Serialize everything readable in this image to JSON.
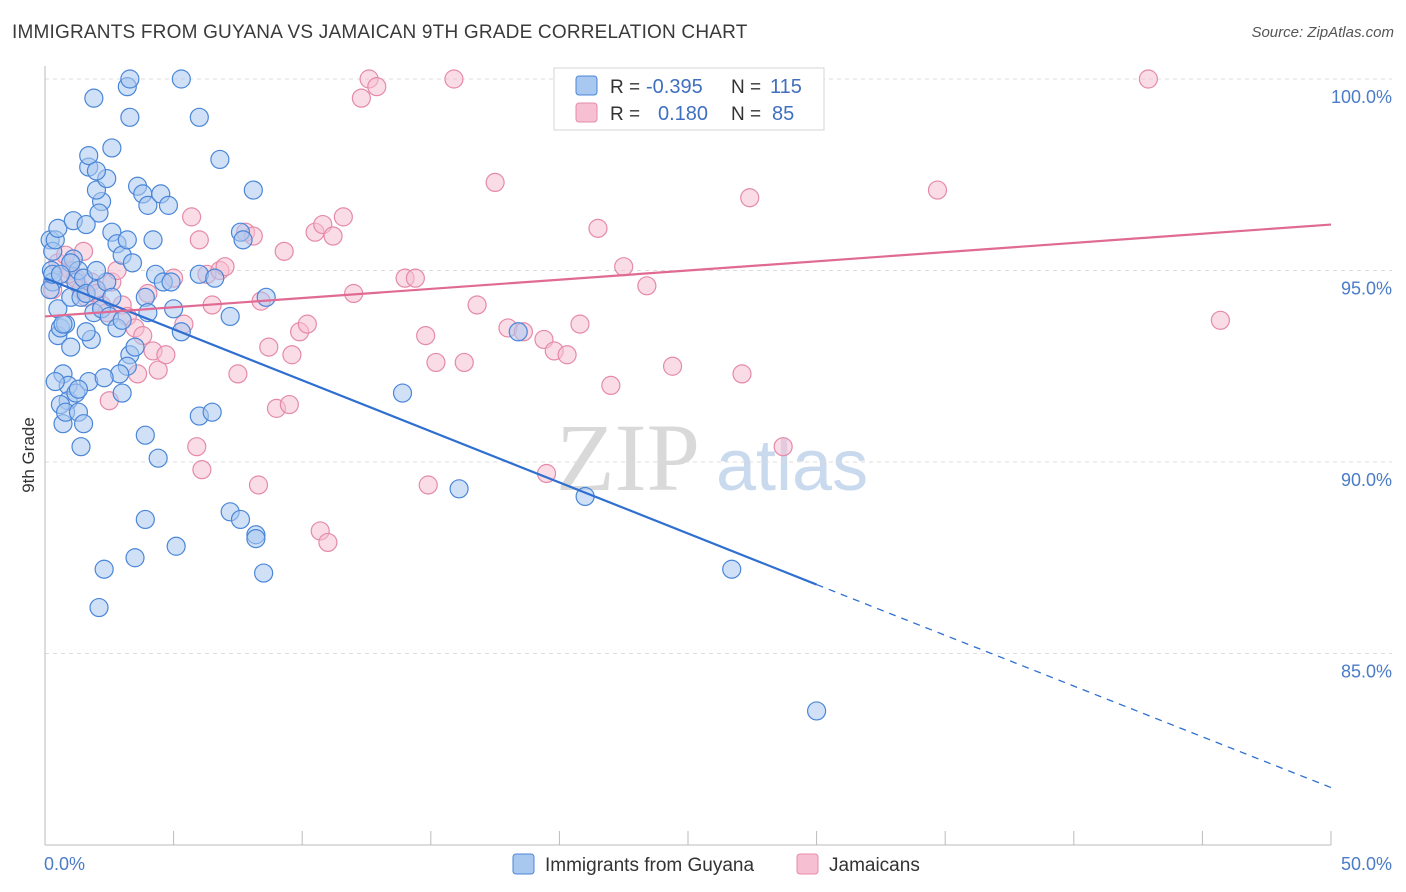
{
  "title": "IMMIGRANTS FROM GUYANA VS JAMAICAN 9TH GRADE CORRELATION CHART",
  "source": "Source: ZipAtlas.com",
  "watermark": {
    "zip": "ZIP",
    "atlas": "atlas"
  },
  "colors": {
    "blue_fill": "#a9c8f0",
    "blue_stroke": "#4a86d8",
    "blue_line": "#2f6fd0",
    "pink_fill": "#f6c0d2",
    "pink_stroke": "#e58aa9",
    "pink_line": "#e06a93",
    "grid": "#dcdcdc",
    "tick_text": "#4a7cc7"
  },
  "legend": {
    "row1": {
      "r_label": "R =",
      "r_value": "-0.395",
      "n_label": "N =",
      "n_value": "115"
    },
    "row2": {
      "r_label": "R =",
      "r_value": "0.180",
      "n_label": "N =",
      "n_value": "85"
    }
  },
  "chart_data": {
    "type": "scatter",
    "title": "IMMIGRANTS FROM GUYANA VS JAMAICAN 9TH GRADE CORRELATION CHART",
    "xlabel": "",
    "ylabel": "9th Grade",
    "xlim": [
      0,
      50
    ],
    "ylim": [
      80.5,
      101.0
    ],
    "x_tick_labels": {
      "left": "0.0%",
      "right": "50.0%"
    },
    "y_ticks": [
      {
        "value": 100,
        "label": "100.0%"
      },
      {
        "value": 95,
        "label": "95.0%"
      },
      {
        "value": 90,
        "label": "90.0%"
      },
      {
        "value": 85,
        "label": "85.0%"
      }
    ],
    "series": [
      {
        "name": "Immigrants from Guyana",
        "color": "blue",
        "R": -0.395,
        "N": 115,
        "trend": {
          "x0": 0,
          "y0": 94.8,
          "x1": 30,
          "y1": 86.8,
          "dash_to_x": 50,
          "dash_to_y": 81.5
        },
        "points": [
          [
            0.2,
            95.8
          ],
          [
            0.3,
            95.5
          ],
          [
            0.25,
            95.0
          ],
          [
            0.3,
            94.7
          ],
          [
            0.2,
            94.5
          ],
          [
            0.4,
            95.8
          ],
          [
            0.5,
            94.0
          ],
          [
            0.5,
            93.3
          ],
          [
            0.6,
            93.5
          ],
          [
            0.8,
            93.6
          ],
          [
            0.7,
            92.3
          ],
          [
            0.9,
            92.0
          ],
          [
            0.9,
            91.6
          ],
          [
            0.6,
            91.5
          ],
          [
            0.7,
            91.0
          ],
          [
            0.8,
            91.3
          ],
          [
            1.0,
            94.3
          ],
          [
            1.2,
            94.7
          ],
          [
            1.1,
            95.3
          ],
          [
            1.3,
            95.0
          ],
          [
            1.5,
            94.8
          ],
          [
            1.4,
            94.3
          ],
          [
            1.6,
            94.4
          ],
          [
            1.0,
            93.0
          ],
          [
            1.2,
            91.8
          ],
          [
            1.3,
            91.3
          ],
          [
            1.5,
            91.0
          ],
          [
            1.4,
            90.4
          ],
          [
            1.7,
            92.1
          ],
          [
            1.8,
            93.2
          ],
          [
            1.6,
            93.4
          ],
          [
            1.9,
            93.9
          ],
          [
            2.0,
            94.5
          ],
          [
            2.2,
            94.0
          ],
          [
            2.4,
            94.7
          ],
          [
            2.6,
            94.3
          ],
          [
            2.5,
            93.8
          ],
          [
            2.8,
            93.5
          ],
          [
            3.0,
            93.7
          ],
          [
            2.2,
            96.8
          ],
          [
            2.6,
            96.0
          ],
          [
            2.8,
            95.7
          ],
          [
            3.0,
            95.4
          ],
          [
            3.2,
            95.8
          ],
          [
            3.4,
            95.2
          ],
          [
            2.0,
            97.1
          ],
          [
            2.4,
            97.4
          ],
          [
            2.6,
            98.2
          ],
          [
            1.7,
            97.7
          ],
          [
            1.7,
            98.0
          ],
          [
            1.9,
            99.5
          ],
          [
            2.0,
            97.6
          ],
          [
            2.1,
            96.5
          ],
          [
            3.2,
            99.8
          ],
          [
            3.3,
            100.0
          ],
          [
            3.3,
            99.0
          ],
          [
            3.6,
            97.2
          ],
          [
            3.8,
            97.0
          ],
          [
            4.0,
            96.7
          ],
          [
            4.2,
            95.8
          ],
          [
            4.3,
            94.9
          ],
          [
            4.6,
            94.7
          ],
          [
            4.5,
            97.0
          ],
          [
            4.8,
            96.7
          ],
          [
            5.3,
            100.0
          ],
          [
            6.0,
            99.0
          ],
          [
            6.8,
            97.9
          ],
          [
            8.1,
            97.1
          ],
          [
            7.6,
            96.0
          ],
          [
            7.7,
            95.8
          ],
          [
            6.0,
            94.9
          ],
          [
            6.6,
            94.8
          ],
          [
            5.0,
            94.0
          ],
          [
            4.9,
            94.7
          ],
          [
            3.9,
            94.3
          ],
          [
            4.0,
            93.9
          ],
          [
            3.3,
            92.8
          ],
          [
            3.5,
            93.0
          ],
          [
            3.2,
            92.5
          ],
          [
            3.0,
            91.8
          ],
          [
            2.9,
            92.3
          ],
          [
            5.3,
            93.4
          ],
          [
            7.2,
            93.8
          ],
          [
            8.6,
            94.3
          ],
          [
            3.9,
            90.7
          ],
          [
            4.4,
            90.1
          ],
          [
            6.0,
            91.2
          ],
          [
            6.5,
            91.3
          ],
          [
            3.9,
            88.5
          ],
          [
            5.1,
            87.8
          ],
          [
            3.5,
            87.5
          ],
          [
            2.3,
            87.2
          ],
          [
            2.1,
            86.2
          ],
          [
            7.2,
            88.7
          ],
          [
            7.6,
            88.5
          ],
          [
            8.2,
            88.1
          ],
          [
            8.2,
            88.0
          ],
          [
            8.5,
            87.1
          ],
          [
            13.9,
            91.8
          ],
          [
            16.1,
            89.3
          ],
          [
            18.4,
            93.4
          ],
          [
            21.0,
            89.1
          ],
          [
            26.7,
            87.2
          ],
          [
            30.0,
            83.5
          ],
          [
            0.4,
            92.1
          ],
          [
            1.3,
            91.9
          ],
          [
            2.3,
            92.2
          ],
          [
            0.7,
            93.6
          ],
          [
            1.0,
            95.2
          ],
          [
            0.5,
            96.1
          ],
          [
            1.1,
            96.3
          ],
          [
            1.6,
            96.2
          ],
          [
            0.3,
            94.9
          ],
          [
            0.6,
            94.9
          ],
          [
            2.0,
            95.0
          ]
        ]
      },
      {
        "name": "Jamaicans",
        "color": "pink",
        "R": 0.18,
        "N": 85,
        "trend": {
          "x0": 0,
          "y0": 93.8,
          "x1": 50,
          "y1": 96.2
        },
        "points": [
          [
            0.3,
            94.5
          ],
          [
            0.5,
            95.2
          ],
          [
            0.8,
            95.4
          ],
          [
            1.0,
            95.0
          ],
          [
            1.2,
            94.8
          ],
          [
            1.4,
            94.5
          ],
          [
            1.6,
            94.3
          ],
          [
            1.8,
            94.7
          ],
          [
            2.0,
            94.4
          ],
          [
            2.2,
            94.1
          ],
          [
            2.4,
            93.9
          ],
          [
            2.6,
            94.7
          ],
          [
            2.8,
            95.0
          ],
          [
            3.0,
            94.1
          ],
          [
            3.2,
            93.8
          ],
          [
            3.5,
            93.5
          ],
          [
            3.8,
            93.3
          ],
          [
            4.0,
            94.4
          ],
          [
            4.2,
            92.9
          ],
          [
            4.4,
            92.4
          ],
          [
            4.7,
            92.8
          ],
          [
            5.0,
            94.8
          ],
          [
            5.4,
            93.6
          ],
          [
            5.7,
            96.4
          ],
          [
            6.0,
            95.8
          ],
          [
            6.3,
            94.9
          ],
          [
            6.5,
            94.1
          ],
          [
            6.8,
            95.0
          ],
          [
            7.0,
            95.1
          ],
          [
            7.5,
            92.3
          ],
          [
            7.8,
            96.0
          ],
          [
            8.1,
            95.9
          ],
          [
            8.4,
            94.2
          ],
          [
            8.7,
            93.0
          ],
          [
            9.0,
            91.4
          ],
          [
            9.3,
            95.5
          ],
          [
            9.6,
            92.8
          ],
          [
            9.9,
            93.4
          ],
          [
            10.2,
            93.6
          ],
          [
            10.5,
            96.0
          ],
          [
            10.8,
            96.2
          ],
          [
            11.2,
            95.9
          ],
          [
            11.6,
            96.4
          ],
          [
            12.0,
            94.4
          ],
          [
            12.3,
            99.5
          ],
          [
            12.6,
            100.0
          ],
          [
            12.9,
            99.8
          ],
          [
            14.0,
            94.8
          ],
          [
            14.4,
            94.8
          ],
          [
            14.8,
            93.3
          ],
          [
            15.2,
            92.6
          ],
          [
            15.9,
            100.0
          ],
          [
            16.3,
            92.6
          ],
          [
            16.8,
            94.1
          ],
          [
            17.5,
            97.3
          ],
          [
            18.0,
            93.5
          ],
          [
            18.6,
            93.4
          ],
          [
            19.4,
            93.2
          ],
          [
            19.8,
            92.9
          ],
          [
            20.3,
            92.8
          ],
          [
            20.8,
            93.6
          ],
          [
            21.5,
            96.1
          ],
          [
            22.0,
            92.0
          ],
          [
            22.5,
            95.1
          ],
          [
            23.4,
            94.6
          ],
          [
            24.4,
            92.5
          ],
          [
            26.5,
            100.0
          ],
          [
            27.1,
            92.3
          ],
          [
            27.4,
            96.9
          ],
          [
            28.7,
            90.4
          ],
          [
            34.7,
            97.1
          ],
          [
            42.9,
            100.0
          ],
          [
            45.7,
            93.7
          ],
          [
            5.9,
            90.4
          ],
          [
            6.1,
            89.8
          ],
          [
            8.3,
            89.4
          ],
          [
            9.5,
            91.5
          ],
          [
            10.7,
            88.2
          ],
          [
            11.0,
            87.9
          ],
          [
            14.9,
            89.4
          ],
          [
            19.5,
            89.7
          ],
          [
            3.6,
            92.3
          ],
          [
            2.5,
            91.6
          ],
          [
            1.5,
            95.5
          ],
          [
            0.9,
            94.9
          ]
        ]
      }
    ]
  },
  "bottom_legend": {
    "series1": "Immigrants from Guyana",
    "series2": "Jamaicans"
  }
}
